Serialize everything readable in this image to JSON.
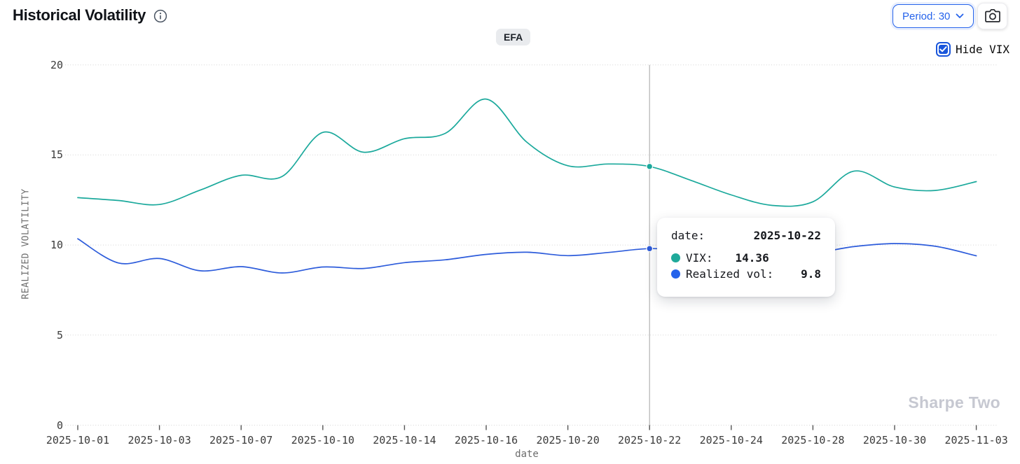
{
  "header": {
    "title": "Historical Volatility",
    "period_button": {
      "label": "Period: 30"
    },
    "symbol_badge": "EFA",
    "hide_vix": {
      "label": "Hide VIX",
      "checked": true
    }
  },
  "chart_data": {
    "type": "line",
    "x": [
      "2025-10-01",
      "2025-10-02",
      "2025-10-03",
      "2025-10-06",
      "2025-10-07",
      "2025-10-08",
      "2025-10-10",
      "2025-10-13",
      "2025-10-14",
      "2025-10-15",
      "2025-10-16",
      "2025-10-17",
      "2025-10-20",
      "2025-10-21",
      "2025-10-22",
      "2025-10-23",
      "2025-10-24",
      "2025-10-27",
      "2025-10-28",
      "2025-10-29",
      "2025-10-30",
      "2025-10-31",
      "2025-11-03"
    ],
    "series": [
      {
        "name": "VIX",
        "color": "#1ba99c",
        "values": [
          12.63,
          12.47,
          12.25,
          13.05,
          13.87,
          13.8,
          16.25,
          15.15,
          15.9,
          16.2,
          18.1,
          15.7,
          14.4,
          14.5,
          14.36,
          13.6,
          12.78,
          12.2,
          12.4,
          14.1,
          13.22,
          13.03,
          13.52
        ]
      },
      {
        "name": "Realized vol",
        "color": "#2d5cdb",
        "values": [
          10.35,
          9.0,
          9.25,
          8.57,
          8.8,
          8.45,
          8.78,
          8.7,
          9.02,
          9.18,
          9.48,
          9.6,
          9.41,
          9.59,
          9.8,
          9.7,
          9.6,
          9.5,
          9.55,
          9.91,
          10.08,
          9.93,
          9.4
        ]
      }
    ],
    "xlabel": "date",
    "ylabel": "REALIZED VOLATILITY",
    "ylim": [
      0,
      20
    ],
    "yticks": [
      0,
      5,
      10,
      15,
      20
    ],
    "xtick_labels": [
      "2025-10-01",
      "2025-10-03",
      "2025-10-07",
      "2025-10-10",
      "2025-10-14",
      "2025-10-16",
      "2025-10-20",
      "2025-10-22",
      "2025-10-24",
      "2025-10-28",
      "2025-10-30",
      "2025-11-03"
    ],
    "grid": "horizontal-dotted",
    "legend_position": "none",
    "highlight_index": 14,
    "crosshair_date": "2025-10-22"
  },
  "tooltip": {
    "date_label": "date:",
    "date_value": "2025-10-22",
    "rows": [
      {
        "name": "VIX:",
        "value": "14.36",
        "color": "#1fa99a"
      },
      {
        "name": "Realized vol:",
        "value": "9.8",
        "color": "#2563eb"
      }
    ]
  },
  "watermark": "Sharpe Two",
  "colors": {
    "accent_blue": "#2563eb",
    "checkbox_blue": "#1a56db",
    "vix_line": "#1ba99c",
    "realized_line": "#2d5cdb",
    "gridline": "#d4d4d4",
    "crosshair": "#b3b3b3",
    "watermark_gray": "#c6c8d1"
  }
}
